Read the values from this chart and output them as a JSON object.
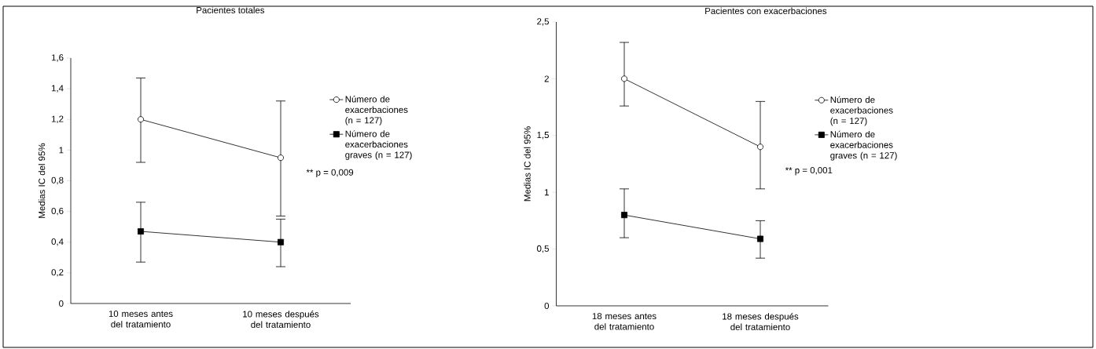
{
  "chart_data": [
    {
      "type": "line",
      "title": "Pacientes totales",
      "ylabel": "Medias IC del 95%",
      "categories": [
        "10 meses antes del tratamiento",
        "10 meses después del tratamiento"
      ],
      "series": [
        {
          "name": "Número de exacerbaciones (n = 127)",
          "color": "#000000",
          "marker": "circle",
          "values": [
            1.2,
            0.95
          ],
          "errors": [
            [
              0.92,
              1.47
            ],
            [
              0.57,
              1.32
            ]
          ]
        },
        {
          "name": "Número de exacerbaciones graves (n = 127)",
          "color": "#000000",
          "marker": "square",
          "values": [
            0.47,
            0.4
          ],
          "errors": [
            [
              0.27,
              0.66
            ],
            [
              0.24,
              0.55
            ]
          ]
        }
      ],
      "ylim": [
        0,
        1.6
      ],
      "yticks": [
        0,
        {
          "value": 0.2,
          "label": "0,2"
        },
        {
          "value": 0.4,
          "label": "0,4"
        },
        {
          "value": 0.6,
          "label": "0,6"
        },
        {
          "value": 0.8,
          "label": "0,8"
        },
        1,
        {
          "value": 1.2,
          "label": "1,2"
        },
        {
          "value": 1.4,
          "label": "1,4"
        },
        {
          "value": 1.6,
          "label": "1,6"
        }
      ],
      "legend": "right",
      "annotations": [
        "** p = 0,009"
      ]
    },
    {
      "type": "line",
      "title": "Pacientes con exacerbaciones",
      "ylabel": "Medias IC del 95%",
      "categories": [
        "18 meses antes del tratamiento",
        "18 meses después del tratamiento"
      ],
      "series": [
        {
          "name": "Número de exacerbaciones (n = 127)",
          "color": "#000000",
          "marker": "circle",
          "values": [
            2.0,
            1.4
          ],
          "errors": [
            [
              1.76,
              2.32
            ],
            [
              1.03,
              1.8
            ]
          ]
        },
        {
          "name": "Número de exacerbaciones graves (n = 127)",
          "color": "#000000",
          "marker": "square",
          "values": [
            0.8,
            0.59
          ],
          "errors": [
            [
              0.6,
              1.03
            ],
            [
              0.42,
              0.75
            ]
          ]
        }
      ],
      "ylim": [
        0,
        2.5
      ],
      "yticks": [
        0,
        {
          "value": 0.5,
          "label": "0,5"
        },
        1,
        {
          "value": 1.5,
          "label": "1,5"
        },
        2,
        {
          "value": 2.5,
          "label": "2,5"
        }
      ],
      "legend": "right",
      "annotations": [
        "** p = 0,001"
      ]
    }
  ]
}
